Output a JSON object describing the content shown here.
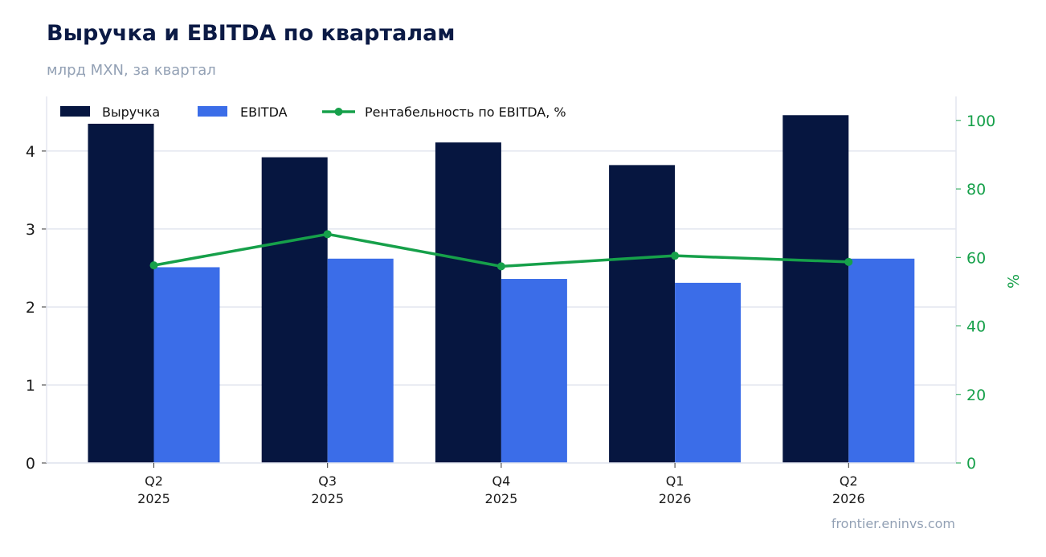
{
  "title": "Выручка и EBITDA по кварталам",
  "subtitle": "млрд MXN, за квартал",
  "footer": "frontier.eninvs.com",
  "colors": {
    "revenue": "#061640",
    "ebitda": "#3b6de8",
    "margin": "#16a04a",
    "grid": "#e3e6ef",
    "axis_text": "#1a1a1a",
    "right_axis_text": "#16a04a"
  },
  "chart_data": {
    "type": "bar",
    "categories": [
      [
        "Q2",
        "2025"
      ],
      [
        "Q3",
        "2025"
      ],
      [
        "Q4",
        "2025"
      ],
      [
        "Q1",
        "2026"
      ],
      [
        "Q2",
        "2026"
      ]
    ],
    "series": [
      {
        "name": "Выручка",
        "type": "bar",
        "axis": "left",
        "values": [
          4.35,
          3.92,
          4.11,
          3.82,
          4.46
        ]
      },
      {
        "name": "EBITDA",
        "type": "bar",
        "axis": "left",
        "values": [
          2.51,
          2.62,
          2.36,
          2.31,
          2.62
        ]
      },
      {
        "name": "Рентабельность по EBITDA, %",
        "type": "line",
        "axis": "right",
        "values": [
          57.7,
          66.8,
          57.4,
          60.5,
          58.7
        ]
      }
    ],
    "y_left": {
      "lim": [
        0,
        4.7
      ],
      "ticks": [
        0,
        1,
        2,
        3,
        4
      ]
    },
    "y_right": {
      "label": "%",
      "lim": [
        0,
        107
      ],
      "ticks": [
        0,
        20,
        40,
        60,
        80,
        100
      ]
    },
    "grid": true,
    "legend": "top-left"
  }
}
